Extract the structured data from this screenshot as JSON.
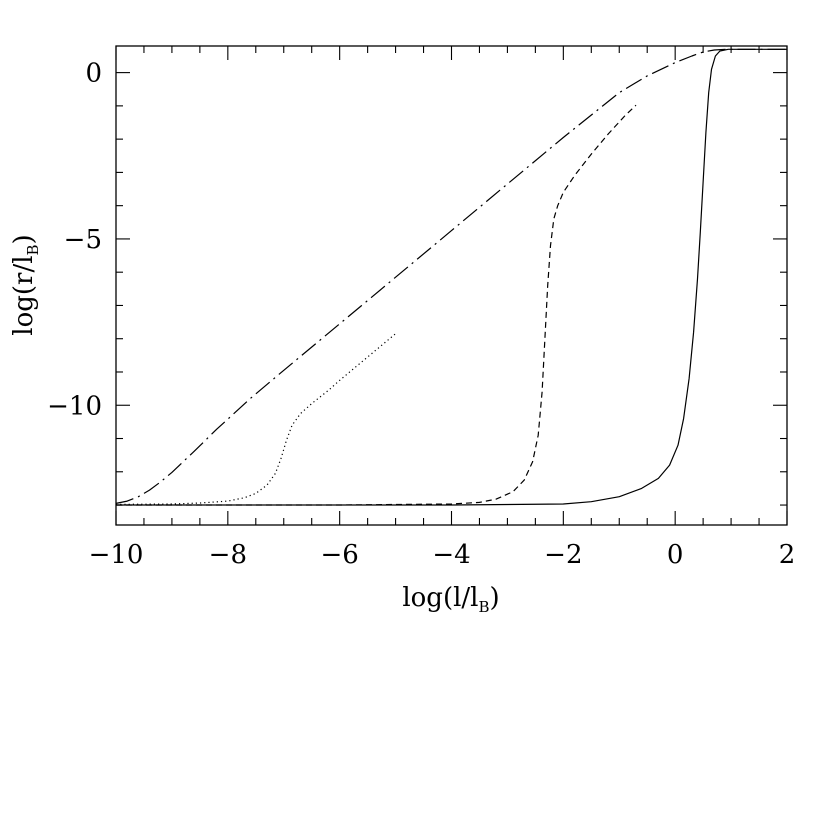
{
  "chart_data": {
    "type": "line",
    "xlabel": {
      "main": "log(l/l",
      "sub": "B",
      "close": ")"
    },
    "ylabel": {
      "main": "log(r/l",
      "sub": "B",
      "close": ")"
    },
    "xlim": [
      -10,
      2
    ],
    "ylim": [
      -13.6,
      0.8
    ],
    "x_ticks": [
      {
        "value": -10,
        "label": "−10"
      },
      {
        "value": -8,
        "label": "−8"
      },
      {
        "value": -6,
        "label": "−6"
      },
      {
        "value": -4,
        "label": "−4"
      },
      {
        "value": -2,
        "label": "−2"
      },
      {
        "value": 0,
        "label": "0"
      },
      {
        "value": 2,
        "label": "2"
      }
    ],
    "y_ticks": [
      {
        "value": 0,
        "label": "0"
      },
      {
        "value": -5,
        "label": "−5"
      },
      {
        "value": -10,
        "label": "−10"
      }
    ],
    "x_minor_step": 0.5,
    "y_minor_step": 1,
    "grid": false,
    "series": [
      {
        "style": "long-dash",
        "points": [
          [
            -10,
            -12.95
          ],
          [
            -9.8,
            -12.88
          ],
          [
            -9.6,
            -12.75
          ],
          [
            -9.4,
            -12.55
          ],
          [
            -9.2,
            -12.3
          ],
          [
            -9.0,
            -12.02
          ],
          [
            -8.8,
            -11.7
          ],
          [
            -8.6,
            -11.38
          ],
          [
            -8.4,
            -11.05
          ],
          [
            -8.2,
            -10.72
          ],
          [
            -8.0,
            -10.42
          ],
          [
            -7.6,
            -9.8
          ],
          [
            -7.0,
            -8.95
          ],
          [
            -6.0,
            -7.55
          ],
          [
            -5.0,
            -6.15
          ],
          [
            -4.0,
            -4.75
          ],
          [
            -3.0,
            -3.35
          ],
          [
            -2.0,
            -1.95
          ],
          [
            -1.0,
            -0.6
          ],
          [
            -0.5,
            -0.1
          ],
          [
            0.0,
            0.3
          ],
          [
            0.3,
            0.5
          ],
          [
            0.5,
            0.62
          ],
          [
            0.7,
            0.68
          ],
          [
            0.9,
            0.7
          ],
          [
            1.2,
            0.7
          ],
          [
            2.0,
            0.7
          ]
        ]
      },
      {
        "style": "dotted",
        "points": [
          [
            -10,
            -12.98
          ],
          [
            -9.0,
            -12.97
          ],
          [
            -8.5,
            -12.94
          ],
          [
            -8.0,
            -12.88
          ],
          [
            -7.7,
            -12.78
          ],
          [
            -7.5,
            -12.65
          ],
          [
            -7.3,
            -12.4
          ],
          [
            -7.15,
            -12.05
          ],
          [
            -7.05,
            -11.6
          ],
          [
            -6.95,
            -11.05
          ],
          [
            -6.85,
            -10.6
          ],
          [
            -6.7,
            -10.25
          ],
          [
            -6.5,
            -9.95
          ],
          [
            -6.2,
            -9.55
          ],
          [
            -6.0,
            -9.25
          ],
          [
            -5.0,
            -7.85
          ]
        ]
      },
      {
        "style": "short-dash",
        "points": [
          [
            -10,
            -13.0
          ],
          [
            -6.0,
            -13.0
          ],
          [
            -4.0,
            -12.97
          ],
          [
            -3.5,
            -12.92
          ],
          [
            -3.2,
            -12.82
          ],
          [
            -2.9,
            -12.6
          ],
          [
            -2.7,
            -12.25
          ],
          [
            -2.55,
            -11.7
          ],
          [
            -2.45,
            -10.9
          ],
          [
            -2.38,
            -9.6
          ],
          [
            -2.33,
            -8.0
          ],
          [
            -2.28,
            -6.4
          ],
          [
            -2.23,
            -5.2
          ],
          [
            -2.17,
            -4.4
          ],
          [
            -2.1,
            -4.0
          ],
          [
            -2.0,
            -3.6
          ],
          [
            -1.8,
            -3.1
          ],
          [
            -1.5,
            -2.45
          ],
          [
            -1.2,
            -1.85
          ],
          [
            -0.9,
            -1.3
          ],
          [
            -0.7,
            -0.98
          ]
        ]
      },
      {
        "style": "solid",
        "points": [
          [
            -10,
            -13.0
          ],
          [
            -4.0,
            -13.0
          ],
          [
            -2.0,
            -12.97
          ],
          [
            -1.5,
            -12.9
          ],
          [
            -1.0,
            -12.75
          ],
          [
            -0.6,
            -12.5
          ],
          [
            -0.3,
            -12.2
          ],
          [
            -0.1,
            -11.8
          ],
          [
            0.05,
            -11.2
          ],
          [
            0.15,
            -10.4
          ],
          [
            0.25,
            -9.2
          ],
          [
            0.33,
            -7.8
          ],
          [
            0.4,
            -6.2
          ],
          [
            0.45,
            -4.8
          ],
          [
            0.5,
            -3.3
          ],
          [
            0.55,
            -1.8
          ],
          [
            0.6,
            -0.6
          ],
          [
            0.65,
            0.1
          ],
          [
            0.72,
            0.5
          ],
          [
            0.8,
            0.65
          ],
          [
            0.95,
            0.7
          ],
          [
            2.0,
            0.7
          ]
        ]
      }
    ]
  }
}
